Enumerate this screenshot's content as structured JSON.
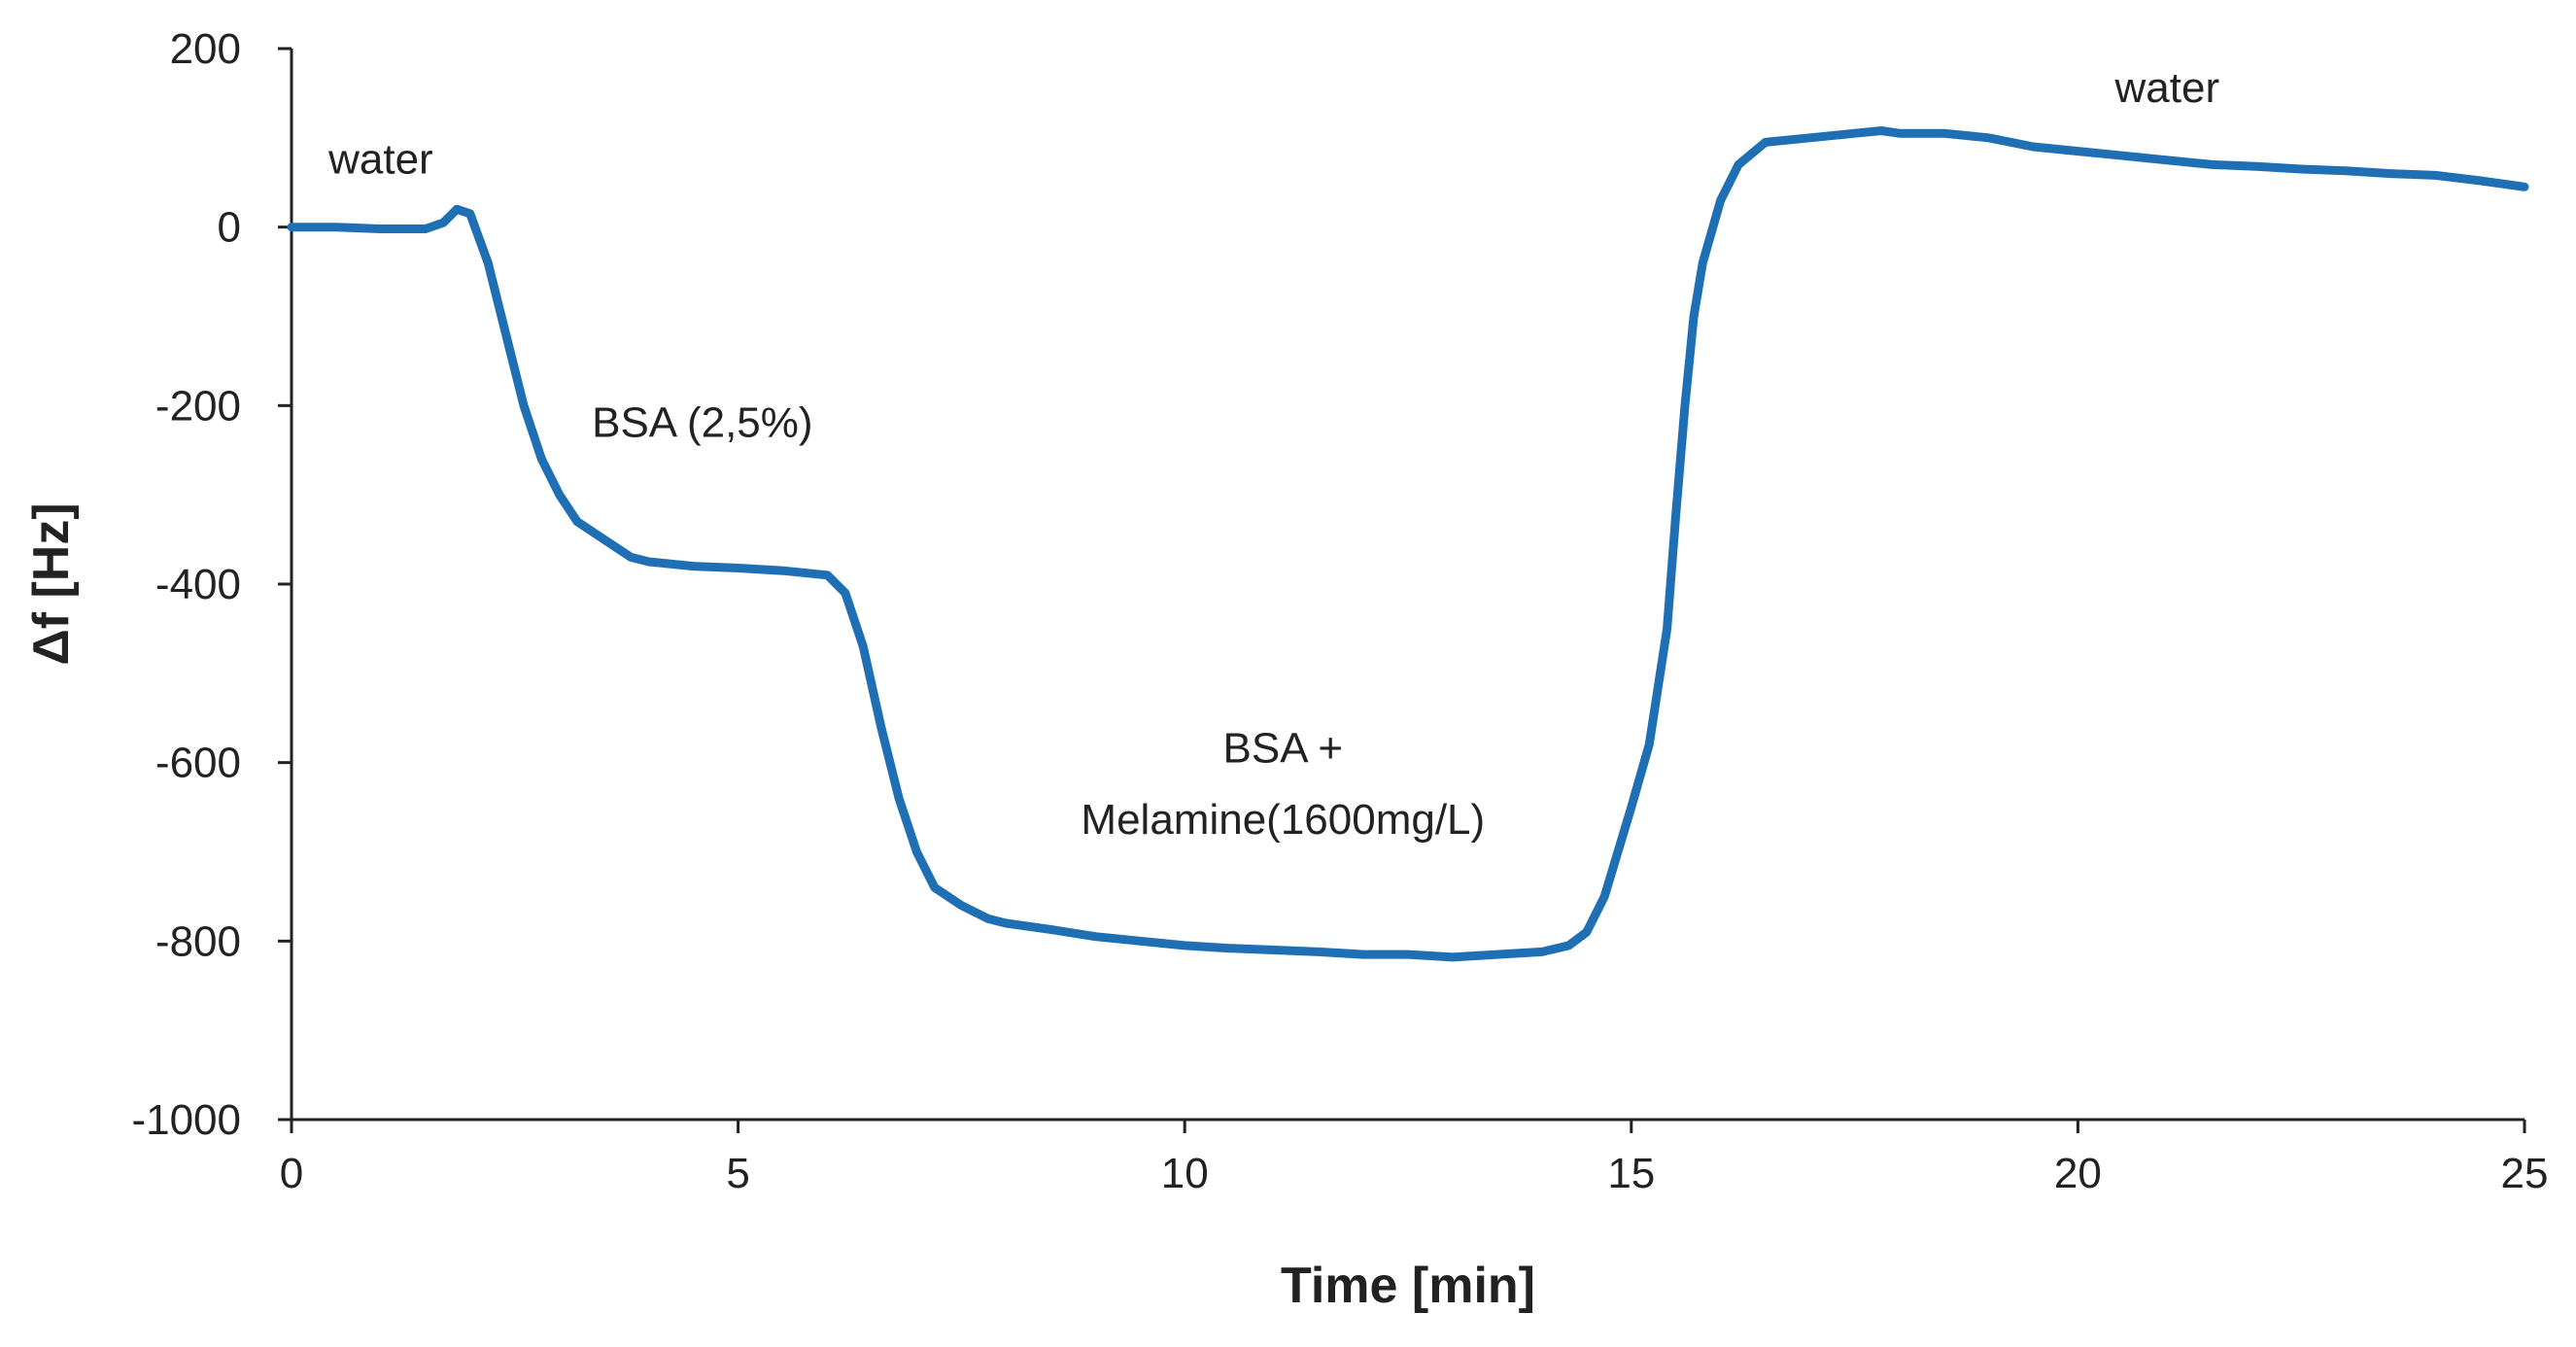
{
  "chart_data": {
    "type": "line",
    "title": "",
    "xlabel": "Time [min]",
    "ylabel": "Δf [Hz]",
    "xlim": [
      0,
      25
    ],
    "ylim": [
      -1000,
      200
    ],
    "xticks": [
      0,
      5,
      10,
      15,
      20,
      25
    ],
    "yticks": [
      200,
      0,
      -200,
      -400,
      -600,
      -800,
      -1000
    ],
    "grid": false,
    "series": [
      {
        "name": "Δf",
        "color": "#1f6fb5",
        "x": [
          0,
          0.5,
          1.0,
          1.5,
          1.7,
          1.85,
          2.0,
          2.2,
          2.4,
          2.6,
          2.8,
          3.0,
          3.2,
          3.5,
          3.8,
          4.0,
          4.5,
          5.0,
          5.5,
          6.0,
          6.2,
          6.4,
          6.6,
          6.8,
          7.0,
          7.2,
          7.5,
          7.8,
          8.0,
          8.5,
          9.0,
          9.5,
          10.0,
          10.5,
          11.0,
          11.5,
          12.0,
          12.5,
          13.0,
          13.5,
          14.0,
          14.3,
          14.5,
          14.7,
          15.0,
          15.2,
          15.4,
          15.5,
          15.6,
          15.7,
          15.8,
          16.0,
          16.2,
          16.5,
          17.0,
          17.5,
          17.8,
          18.0,
          18.5,
          19.0,
          19.5,
          20.0,
          20.5,
          21.0,
          21.5,
          22.0,
          22.5,
          23.0,
          23.5,
          24.0,
          24.5,
          25.0
        ],
        "y": [
          0,
          0,
          -2,
          -2,
          5,
          20,
          15,
          -40,
          -120,
          -200,
          -260,
          -300,
          -330,
          -350,
          -370,
          -375,
          -380,
          -382,
          -385,
          -390,
          -410,
          -470,
          -560,
          -640,
          -700,
          -740,
          -760,
          -775,
          -780,
          -787,
          -795,
          -800,
          -805,
          -808,
          -810,
          -812,
          -815,
          -815,
          -818,
          -815,
          -812,
          -805,
          -790,
          -750,
          -650,
          -580,
          -450,
          -320,
          -200,
          -100,
          -40,
          30,
          70,
          95,
          100,
          105,
          108,
          105,
          105,
          100,
          90,
          85,
          80,
          75,
          70,
          68,
          65,
          63,
          60,
          58,
          52,
          45
        ]
      }
    ],
    "annotations": [
      {
        "text": "water",
        "x": 1.0,
        "y": 60
      },
      {
        "text": "BSA (2,5%)",
        "x": 4.6,
        "y": -235
      },
      {
        "text": "BSA +",
        "x": 11.1,
        "y": -600
      },
      {
        "text": "Melamine(1600mg/L)",
        "x": 11.1,
        "y": -680
      },
      {
        "text": "water",
        "x": 21.0,
        "y": 140
      }
    ]
  }
}
